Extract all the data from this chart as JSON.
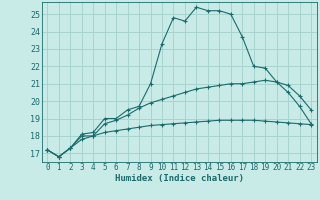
{
  "xlabel": "Humidex (Indice chaleur)",
  "bg_color": "#c8ebe8",
  "grid_color": "#a8d4d0",
  "line_color": "#1a6b6b",
  "xlim": [
    -0.5,
    23.5
  ],
  "ylim": [
    16.5,
    25.7
  ],
  "yticks": [
    17,
    18,
    19,
    20,
    21,
    22,
    23,
    24,
    25
  ],
  "xticks": [
    0,
    1,
    2,
    3,
    4,
    5,
    6,
    7,
    8,
    9,
    10,
    11,
    12,
    13,
    14,
    15,
    16,
    17,
    18,
    19,
    20,
    21,
    22,
    23
  ],
  "series": [
    {
      "x": [
        0,
        1,
        2,
        3,
        4,
        5,
        6,
        7,
        8,
        9,
        10,
        11,
        12,
        13,
        14,
        15,
        16,
        17,
        18,
        19,
        20,
        21,
        22,
        23
      ],
      "y": [
        17.2,
        16.8,
        17.3,
        18.1,
        18.2,
        19.0,
        19.0,
        19.5,
        19.7,
        21.0,
        23.3,
        24.8,
        24.6,
        25.4,
        25.2,
        25.2,
        25.0,
        23.7,
        22.0,
        21.9,
        21.1,
        20.5,
        19.7,
        18.7
      ]
    },
    {
      "x": [
        0,
        1,
        2,
        3,
        4,
        5,
        6,
        7,
        8,
        9,
        10,
        11,
        12,
        13,
        14,
        15,
        16,
        17,
        18,
        19,
        20,
        21,
        22,
        23
      ],
      "y": [
        17.2,
        16.8,
        17.3,
        18.0,
        18.0,
        18.7,
        18.9,
        19.2,
        19.6,
        19.9,
        20.1,
        20.3,
        20.5,
        20.7,
        20.8,
        20.9,
        21.0,
        21.0,
        21.1,
        21.2,
        21.1,
        20.9,
        20.3,
        19.5
      ]
    },
    {
      "x": [
        0,
        1,
        2,
        3,
        4,
        5,
        6,
        7,
        8,
        9,
        10,
        11,
        12,
        13,
        14,
        15,
        16,
        17,
        18,
        19,
        20,
        21,
        22,
        23
      ],
      "y": [
        17.2,
        16.8,
        17.3,
        17.8,
        18.0,
        18.2,
        18.3,
        18.4,
        18.5,
        18.6,
        18.65,
        18.7,
        18.75,
        18.8,
        18.85,
        18.9,
        18.9,
        18.9,
        18.9,
        18.85,
        18.8,
        18.75,
        18.7,
        18.65
      ]
    }
  ]
}
